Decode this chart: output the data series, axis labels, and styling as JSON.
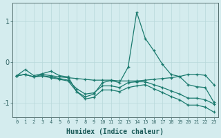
{
  "xlabel": "Humidex (Indice chaleur)",
  "background_color": "#d4ecee",
  "line_color": "#1a7a6e",
  "grid_color": "#b8d8da",
  "xlim": [
    -0.5,
    23.5
  ],
  "ylim": [
    -1.35,
    1.45
  ],
  "yticks": [
    -1,
    0,
    1
  ],
  "xticks": [
    0,
    1,
    2,
    3,
    4,
    5,
    6,
    7,
    8,
    9,
    10,
    11,
    12,
    13,
    14,
    15,
    16,
    17,
    18,
    19,
    20,
    21,
    22,
    23
  ],
  "series": [
    {
      "x": [
        0,
        1,
        2,
        3,
        4,
        5,
        6,
        7,
        8,
        9,
        10,
        11,
        12,
        13,
        14,
        15,
        16,
        17,
        18,
        19,
        20,
        21,
        22,
        23
      ],
      "y": [
        -0.33,
        -0.18,
        -0.33,
        -0.28,
        -0.22,
        -0.33,
        -0.36,
        -0.72,
        -0.85,
        -0.78,
        -0.5,
        -0.45,
        -0.5,
        -0.12,
        1.22,
        0.58,
        0.28,
        -0.05,
        -0.3,
        -0.35,
        -0.55,
        -0.6,
        -0.62,
        -0.98
      ]
    },
    {
      "x": [
        0,
        1,
        2,
        3,
        4,
        5,
        6,
        7,
        8,
        9,
        10,
        11,
        12,
        13,
        14,
        15,
        16,
        17,
        18,
        19,
        20,
        21,
        22,
        23
      ],
      "y": [
        -0.33,
        -0.3,
        -0.36,
        -0.3,
        -0.33,
        -0.36,
        -0.38,
        -0.4,
        -0.42,
        -0.44,
        -0.44,
        -0.44,
        -0.46,
        -0.46,
        -0.46,
        -0.44,
        -0.42,
        -0.4,
        -0.38,
        -0.35,
        -0.3,
        -0.3,
        -0.32,
        -0.55
      ]
    },
    {
      "x": [
        0,
        1,
        2,
        3,
        4,
        5,
        6,
        7,
        8,
        9,
        10,
        11,
        12,
        13,
        14,
        15,
        16,
        17,
        18,
        19,
        20,
        21,
        22,
        23
      ],
      "y": [
        -0.33,
        -0.3,
        -0.36,
        -0.33,
        -0.36,
        -0.4,
        -0.44,
        -0.65,
        -0.78,
        -0.75,
        -0.58,
        -0.58,
        -0.62,
        -0.5,
        -0.48,
        -0.48,
        -0.55,
        -0.62,
        -0.7,
        -0.78,
        -0.88,
        -0.88,
        -0.92,
        -1.02
      ]
    },
    {
      "x": [
        0,
        1,
        2,
        3,
        4,
        5,
        6,
        7,
        8,
        9,
        10,
        11,
        12,
        13,
        14,
        15,
        16,
        17,
        18,
        19,
        20,
        21,
        22,
        23
      ],
      "y": [
        -0.33,
        -0.3,
        -0.36,
        -0.34,
        -0.38,
        -0.42,
        -0.46,
        -0.72,
        -0.9,
        -0.86,
        -0.68,
        -0.68,
        -0.72,
        -0.62,
        -0.58,
        -0.55,
        -0.65,
        -0.74,
        -0.84,
        -0.92,
        -1.05,
        -1.05,
        -1.1,
        -1.22
      ]
    }
  ]
}
